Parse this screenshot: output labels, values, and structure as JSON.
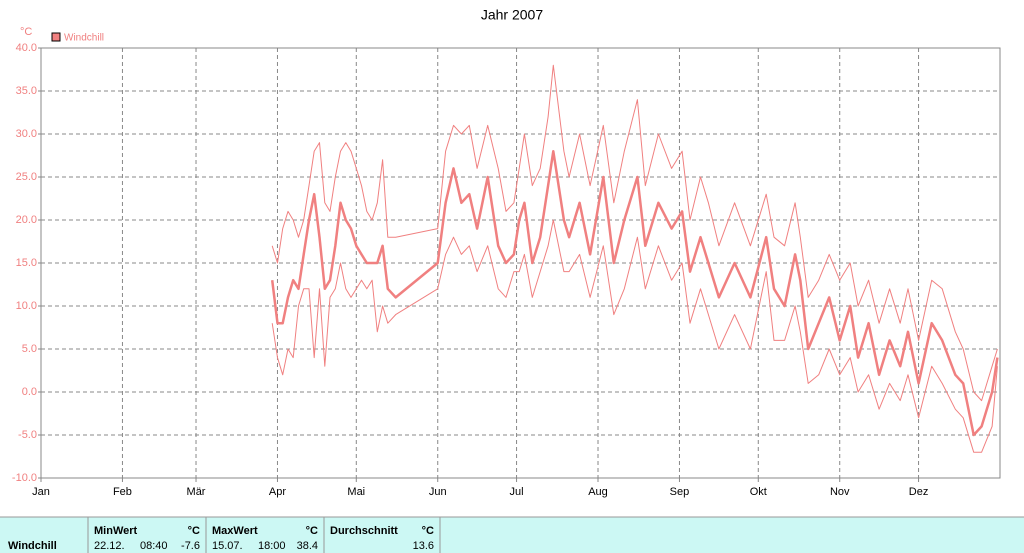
{
  "chart_data": {
    "type": "line",
    "title": "Jahr 2007",
    "ylabel": "°C",
    "xlim": [
      0,
      365
    ],
    "xticks": [
      {
        "value": 0,
        "label": "Jan"
      },
      {
        "value": 31,
        "label": "Feb"
      },
      {
        "value": 59,
        "label": "Mär"
      },
      {
        "value": 90,
        "label": "Apr"
      },
      {
        "value": 120,
        "label": "Mai"
      },
      {
        "value": 151,
        "label": "Jun"
      },
      {
        "value": 181,
        "label": "Jul"
      },
      {
        "value": 212,
        "label": "Aug"
      },
      {
        "value": 243,
        "label": "Sep"
      },
      {
        "value": 273,
        "label": "Okt"
      },
      {
        "value": 304,
        "label": "Nov"
      },
      {
        "value": 334,
        "label": "Dez"
      }
    ],
    "ylim": [
      -10,
      40
    ],
    "yticks": [
      {
        "value": 40,
        "label": "40.0"
      },
      {
        "value": 35,
        "label": "35.0"
      },
      {
        "value": 30,
        "label": "30.0"
      },
      {
        "value": 25,
        "label": "25.0"
      },
      {
        "value": 20,
        "label": "20.0"
      },
      {
        "value": 15,
        "label": "15.0"
      },
      {
        "value": 10,
        "label": "10.0"
      },
      {
        "value": 5,
        "label": "5.0"
      },
      {
        "value": 0,
        "label": "0.0"
      },
      {
        "value": -5,
        "label": "-5.0"
      },
      {
        "value": -10,
        "label": "-10.0"
      }
    ],
    "grid": true,
    "legend": "top-left",
    "x": [
      88,
      90,
      92,
      94,
      96,
      98,
      100,
      102,
      104,
      106,
      108,
      110,
      112,
      114,
      116,
      118,
      120,
      122,
      124,
      126,
      128,
      130,
      132,
      135,
      151,
      154,
      157,
      160,
      163,
      166,
      170,
      174,
      177,
      180,
      182,
      184,
      187,
      190,
      193,
      195,
      199,
      201,
      205,
      209,
      214,
      218,
      222,
      227,
      230,
      235,
      240,
      244,
      247,
      251,
      254,
      258,
      264,
      270,
      276,
      279,
      283,
      287,
      289,
      292,
      296,
      300,
      304,
      308,
      311,
      315,
      319,
      323,
      327,
      330,
      334,
      339,
      343,
      348,
      351,
      355,
      358,
      362,
      364
    ],
    "series": [
      {
        "name": "Windchill",
        "color": "#f08080",
        "values": [
          13,
          8,
          8,
          11,
          13,
          12,
          16,
          20,
          23,
          18,
          12,
          13,
          17,
          22,
          20,
          19,
          17,
          16,
          15,
          15,
          15,
          17,
          12,
          11,
          15,
          22,
          26,
          22,
          23,
          19,
          25,
          17,
          15,
          16,
          20,
          22,
          15,
          18,
          24,
          28,
          20,
          18,
          22,
          16,
          25,
          15,
          20,
          25,
          17,
          22,
          19,
          21,
          14,
          18,
          15,
          11,
          15,
          11,
          18,
          12,
          10,
          16,
          13,
          5,
          8,
          11,
          6,
          10,
          4,
          8,
          2,
          6,
          3,
          7,
          1,
          8,
          6,
          2,
          1,
          -5,
          -4,
          0,
          4
        ],
        "upper": [
          17,
          15,
          19,
          21,
          20,
          18,
          20,
          24,
          28,
          29,
          22,
          21,
          25,
          28,
          29,
          28,
          26,
          24,
          21,
          20,
          22,
          27,
          18,
          18,
          19,
          28,
          31,
          30,
          31,
          26,
          31,
          26,
          21,
          22,
          26,
          30,
          24,
          26,
          32,
          38,
          28,
          25,
          30,
          24,
          31,
          22,
          28,
          34,
          24,
          30,
          26,
          28,
          20,
          25,
          22,
          17,
          22,
          17,
          23,
          18,
          17,
          22,
          18,
          11,
          13,
          16,
          13,
          15,
          10,
          13,
          8,
          12,
          8,
          12,
          6,
          13,
          12,
          7,
          5,
          0,
          -1,
          3,
          5
        ],
        "lower": [
          8,
          4,
          2,
          5,
          4,
          10,
          12,
          12,
          4,
          12,
          3,
          11,
          12,
          15,
          12,
          11,
          12,
          13,
          12,
          13,
          7,
          10,
          8,
          9,
          12,
          16,
          18,
          16,
          17,
          14,
          17,
          12,
          11,
          14,
          14,
          16,
          11,
          14,
          17,
          20,
          14,
          14,
          16,
          11,
          17,
          9,
          12,
          18,
          12,
          17,
          13,
          15,
          8,
          12,
          9,
          5,
          9,
          5,
          14,
          6,
          6,
          10,
          7,
          1,
          2,
          5,
          2,
          4,
          0,
          2,
          -2,
          1,
          -1,
          2,
          -3,
          3,
          1,
          -2,
          -3,
          -7,
          -7,
          -4,
          3
        ]
      }
    ]
  },
  "table": {
    "row_label": "Windchill",
    "columns": [
      {
        "header": "MinWert",
        "unit": "°C",
        "date": "22.12.",
        "time": "08:40",
        "value": "-7.6"
      },
      {
        "header": "MaxWert",
        "unit": "°C",
        "date": "15.07.",
        "time": "18:00",
        "value": "38.4"
      },
      {
        "header": "Durchschnitt",
        "unit": "°C",
        "value": "13.6"
      }
    ]
  }
}
